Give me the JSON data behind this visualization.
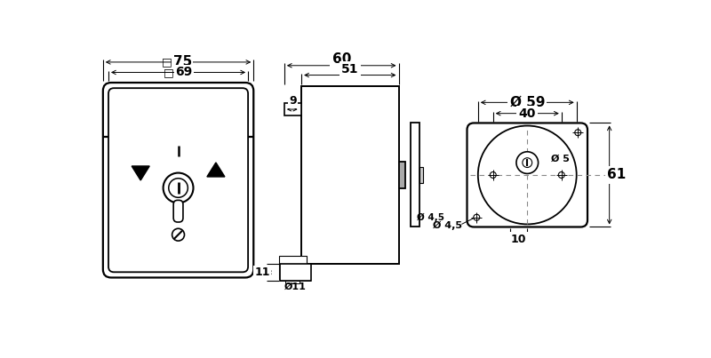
{
  "bg_color": "#ffffff",
  "line_color": "#000000",
  "fig_width": 8.0,
  "fig_height": 4.03,
  "dims": {
    "d75": "75",
    "d69": "69",
    "d60": "60",
    "d51": "51",
    "d9": "9",
    "d11": "11",
    "d_phi11": "Ø11",
    "d_phi59": "Ø 59",
    "d40": "40",
    "d61": "61",
    "d_phi45": "Ø 4,5",
    "d_phi5": "Ø 5",
    "d10": "10"
  }
}
